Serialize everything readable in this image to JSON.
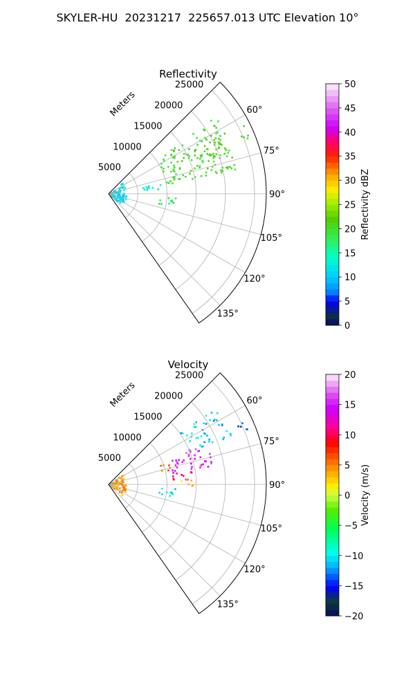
{
  "figure_title": "SKYLER-HU  20231217  225657.013 UTC Elevation 10°",
  "chart_data": [
    {
      "type": "polar-sector-radar",
      "title": "Reflectivity",
      "radial_axis_label": "Meters",
      "radial_ticks": [
        5000,
        10000,
        15000,
        20000,
        25000
      ],
      "radial_tick_labels": [
        "5000",
        "10000",
        "15000",
        "20000",
        "25000"
      ],
      "rlim": [
        0,
        27000
      ],
      "angle_ticks_deg": [
        60,
        75,
        90,
        105,
        120,
        135
      ],
      "angle_tick_labels": [
        "60°",
        "75°",
        "90°",
        "105°",
        "120°",
        "135°"
      ],
      "angle_range_deg": [
        45,
        145
      ],
      "grid": true,
      "colorbar": {
        "label": "Reflectivity dBZ",
        "range": [
          0,
          50
        ],
        "ticks": [
          0,
          5,
          10,
          15,
          20,
          25,
          30,
          35,
          40,
          45,
          50
        ],
        "tick_labels": [
          "0",
          "5",
          "10",
          "15",
          "20",
          "25",
          "30",
          "35",
          "40",
          "45",
          "50"
        ]
      },
      "echo_regions": [
        {
          "az_range": [
            54,
            80
          ],
          "r_range": [
            10000,
            22500
          ],
          "value": 20
        },
        {
          "az_range": [
            62,
            72
          ],
          "r_range": [
            16000,
            21500
          ],
          "value": 21
        },
        {
          "az_range": [
            62,
            68
          ],
          "r_range": [
            24000,
            26200
          ],
          "value": 20
        },
        {
          "az_range": [
            48,
            130
          ],
          "r_range": [
            300,
            3000
          ],
          "value": 11
        },
        {
          "az_range": [
            93,
            101
          ],
          "r_range": [
            8500,
            11500
          ],
          "value": 18
        },
        {
          "az_range": [
            78,
            85
          ],
          "r_range": [
            5500,
            9000
          ],
          "value": 13
        }
      ]
    },
    {
      "type": "polar-sector-radar",
      "title": "Velocity",
      "radial_axis_label": "Meters",
      "radial_ticks": [
        5000,
        10000,
        15000,
        20000,
        25000
      ],
      "radial_tick_labels": [
        "5000",
        "10000",
        "15000",
        "20000",
        "25000"
      ],
      "rlim": [
        0,
        27000
      ],
      "angle_ticks_deg": [
        60,
        75,
        90,
        105,
        120,
        135
      ],
      "angle_tick_labels": [
        "60°",
        "75°",
        "90°",
        "105°",
        "120°",
        "135°"
      ],
      "angle_range_deg": [
        45,
        145
      ],
      "grid": true,
      "colorbar": {
        "label": "Velocity (m/s)",
        "range": [
          -20,
          20
        ],
        "ticks": [
          -20,
          -15,
          -10,
          -5,
          0,
          5,
          10,
          15,
          20
        ],
        "tick_labels": [
          "−20",
          "−15",
          "−10",
          "−5",
          "0",
          "5",
          "10",
          "15",
          "20"
        ]
      },
      "echo_regions": [
        {
          "az_range": [
            54,
            68
          ],
          "r_range": [
            15000,
            22500
          ],
          "value": -11
        },
        {
          "az_range": [
            66,
            80
          ],
          "r_range": [
            11000,
            18000
          ],
          "value": 15
        },
        {
          "az_range": [
            78,
            86
          ],
          "r_range": [
            11000,
            14500
          ],
          "value": 11
        },
        {
          "az_range": [
            86,
            92
          ],
          "r_range": [
            12000,
            14500
          ],
          "value": 3
        },
        {
          "az_range": [
            62,
            68
          ],
          "r_range": [
            24000,
            26200
          ],
          "value": -14
        },
        {
          "az_range": [
            48,
            130
          ],
          "r_range": [
            300,
            3000
          ],
          "value": 4
        },
        {
          "az_range": [
            93,
            101
          ],
          "r_range": [
            8500,
            11500
          ],
          "value": -11
        },
        {
          "az_range": [
            68,
            76
          ],
          "r_range": [
            9000,
            11000
          ],
          "value": 6
        }
      ]
    }
  ]
}
